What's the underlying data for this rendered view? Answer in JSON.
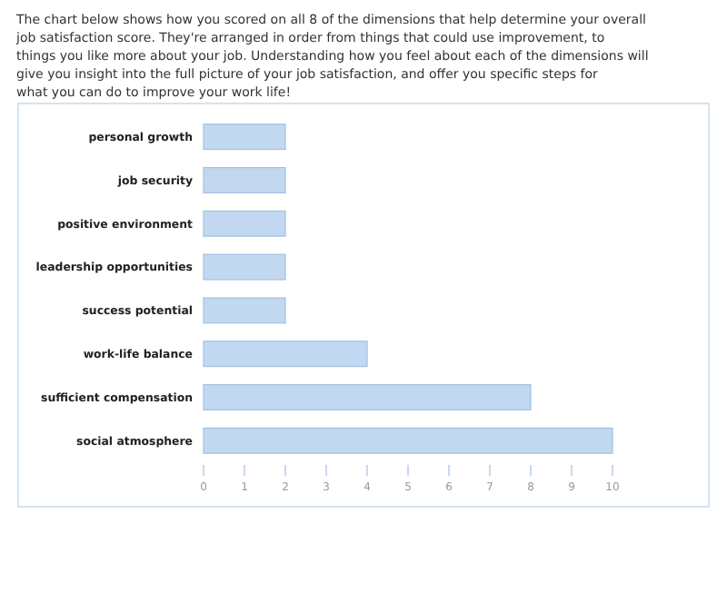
{
  "chart_data": {
    "type": "bar",
    "orientation": "horizontal",
    "subtitle": "The chart below shows how you scored on all 8 of the dimensions that help determine your overall job satisfaction score. They're arranged in order from things that could use improvement, to things you like more about your job. Understanding how you feel about each of the dimensions will give you insight into the full picture of your job satisfaction, and offer you specific steps for what you can do to improve your work life!",
    "categories": [
      "personal growth",
      "job security",
      "positive environment",
      "leadership opportunities",
      "success potential",
      "work-life balance",
      "sufficient compensation",
      "social atmosphere"
    ],
    "values": [
      2,
      2,
      2,
      2,
      2,
      4,
      8,
      10
    ],
    "color": "#c2d8f0",
    "xlim": [
      0,
      10
    ],
    "xticks": [
      0,
      1,
      2,
      3,
      4,
      5,
      6,
      7,
      8,
      9,
      10
    ],
    "grid": false
  }
}
